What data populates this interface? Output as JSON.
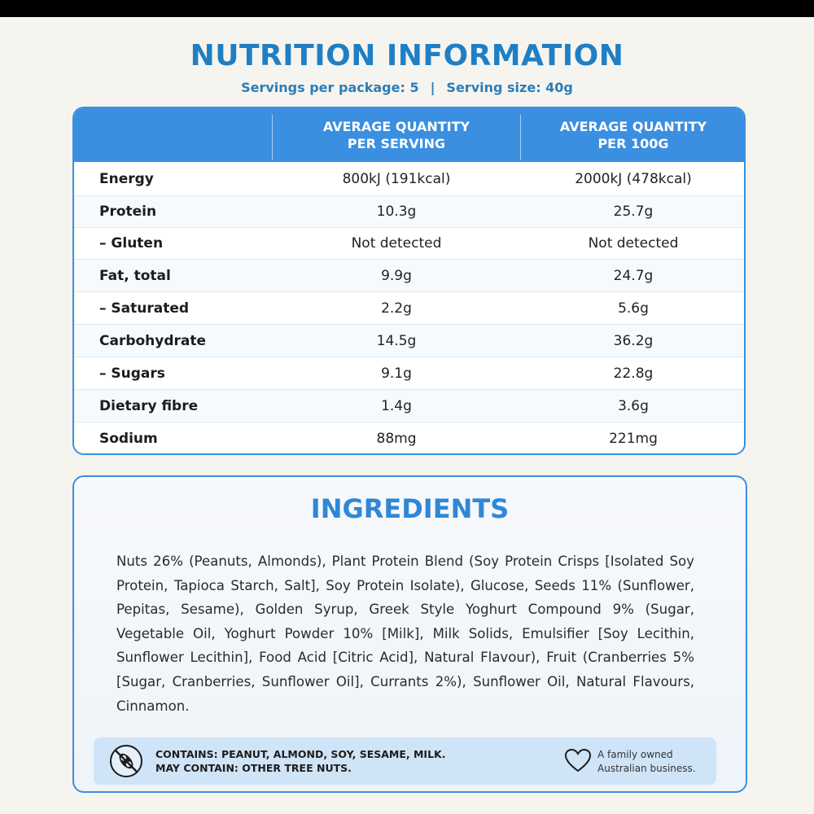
{
  "title": "NUTRITION INFORMATION",
  "servings": {
    "per_package": "Servings per package: 5",
    "separator": "|",
    "serving_size": "Serving size: 40g"
  },
  "table": {
    "headers": [
      "",
      "AVERAGE QUANTITY\nPER SERVING",
      "AVERAGE QUANTITY\nPER 100G"
    ],
    "rows": [
      {
        "label": "Energy",
        "per_serving": "800kJ (191kcal)",
        "per_100g": "2000kJ (478kcal)"
      },
      {
        "label": "Protein",
        "per_serving": "10.3g",
        "per_100g": "25.7g"
      },
      {
        "label": "– Gluten",
        "per_serving": "Not detected",
        "per_100g": "Not detected"
      },
      {
        "label": "Fat, total",
        "per_serving": "9.9g",
        "per_100g": "24.7g"
      },
      {
        "label": "– Saturated",
        "per_serving": "2.2g",
        "per_100g": "5.6g"
      },
      {
        "label": "Carbohydrate",
        "per_serving": "14.5g",
        "per_100g": "36.2g"
      },
      {
        "label": "– Sugars",
        "per_serving": "9.1g",
        "per_100g": "22.8g"
      },
      {
        "label": "Dietary fibre",
        "per_serving": "1.4g",
        "per_100g": "3.6g"
      },
      {
        "label": "Sodium",
        "per_serving": "88mg",
        "per_100g": "221mg"
      }
    ]
  },
  "ingredients": {
    "title": "INGREDIENTS",
    "text": "Nuts 26% (Peanuts, Almonds), Plant Protein Blend (Soy Protein Crisps [Isolated Soy Protein, Tapioca Starch, Salt], Soy Protein Isolate), Glucose, Seeds 11% (Sunflower, Pepitas, Sesame), Golden Syrup, Greek Style Yoghurt Compound 9% (Sugar, Vegetable Oil, Yoghurt Powder 10% [Milk], Milk Solids, Emulsifier [Soy Lecithin, Sunflower Lecithin], Food Acid [Citric Acid], Natural Flavour), Fruit (Cranberries 5% [Sugar, Cranberries, Sunflower Oil], Currants 2%), Sunflower Oil, Natural Flavours, Cinnamon."
  },
  "allergen": {
    "icon": "no-nuts-icon",
    "contains": "CONTAINS: PEANUT, ALMOND, SOY, SESAME, MILK.",
    "may_contain": "MAY CONTAIN: OTHER TREE NUTS.",
    "family_icon": "heart-icon",
    "family_line1": "A family owned",
    "family_line2": "Australian business."
  },
  "colors": {
    "accent": "#3a8fe0",
    "title": "#1f7fc4",
    "allergen_bg": "#cfe4f7"
  }
}
